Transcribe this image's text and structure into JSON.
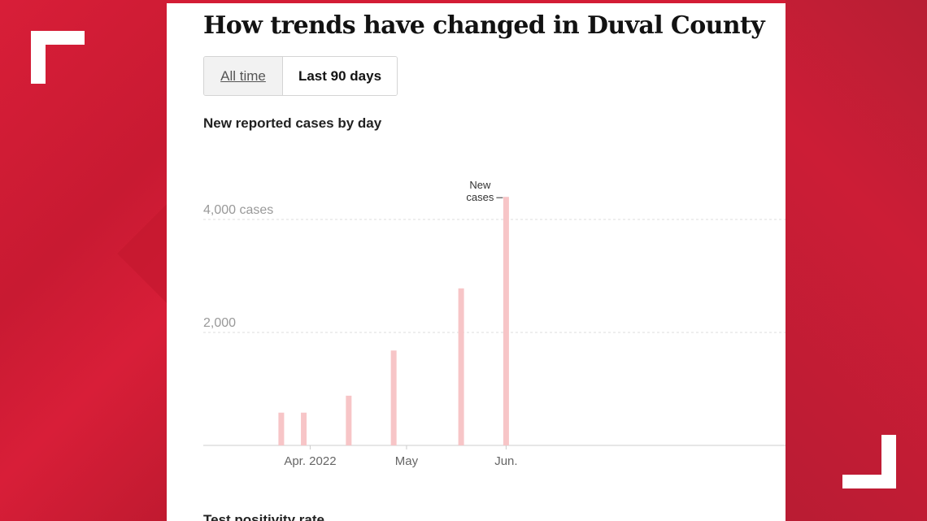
{
  "title": "How trends have changed in Duval County",
  "toggle": {
    "all_label": "All time",
    "last_label": "Last 90 days",
    "selected": "Last 90 days"
  },
  "chart_subtitle": "New reported cases by day",
  "next_section_title": "Test positivity rate",
  "colors": {
    "background": "#d31c35",
    "bar": "#f7c5c7",
    "grid": "#dddddd",
    "tick_text": "#999999",
    "axis_text": "#666666"
  },
  "chart_data": {
    "type": "bar",
    "title": "New reported cases by day",
    "xlabel": "",
    "ylabel": "",
    "x": [
      "2022-03-23",
      "2022-03-30",
      "2022-04-13",
      "2022-04-27",
      "2022-05-18",
      "2022-06-01"
    ],
    "values": [
      580,
      580,
      880,
      1680,
      2780,
      4400
    ],
    "ylim": [
      0,
      4500
    ],
    "yticks": [
      {
        "value": 2000,
        "label": "2,000"
      },
      {
        "value": 4000,
        "label": "4,000 cases"
      }
    ],
    "xticks": [
      {
        "date": "2022-04-01",
        "label": "Apr. 2022"
      },
      {
        "date": "2022-05-01",
        "label": "May"
      },
      {
        "date": "2022-06-01",
        "label": "Jun."
      }
    ],
    "annotation": {
      "text_line1": "New",
      "text_line2": "cases"
    },
    "grid": true
  }
}
